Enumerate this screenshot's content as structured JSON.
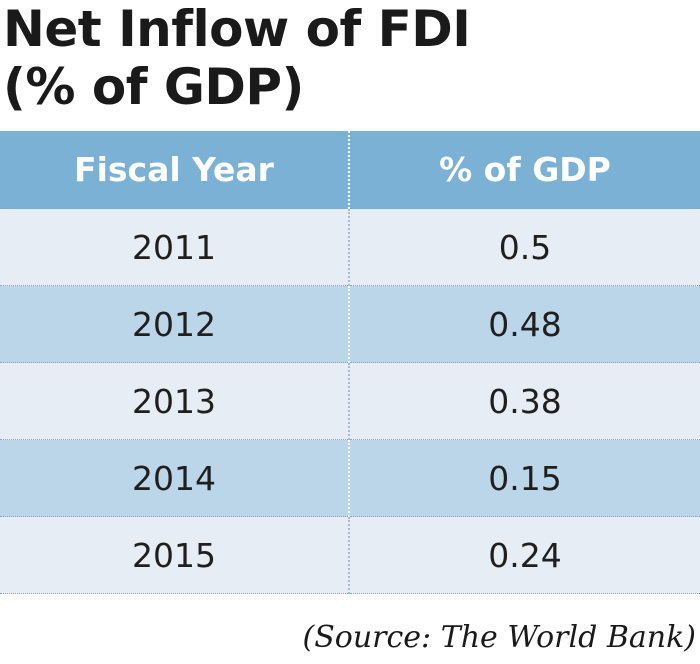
{
  "chart_data": {
    "type": "table",
    "title_lines": [
      "Net Inflow of FDI",
      "(% of GDP)"
    ],
    "columns": [
      "Fiscal Year",
      "% of GDP"
    ],
    "rows": [
      [
        "2011",
        "0.5"
      ],
      [
        "2012",
        "0.48"
      ],
      [
        "2013",
        "0.38"
      ],
      [
        "2014",
        "0.15"
      ],
      [
        "2015",
        "0.24"
      ]
    ],
    "source": "(Source: The World Bank)",
    "colors": {
      "header_bg": "#7bb1d4",
      "row_light": "#e6edf5",
      "row_dark": "#bcd6e9",
      "header_text": "#ffffff"
    }
  }
}
